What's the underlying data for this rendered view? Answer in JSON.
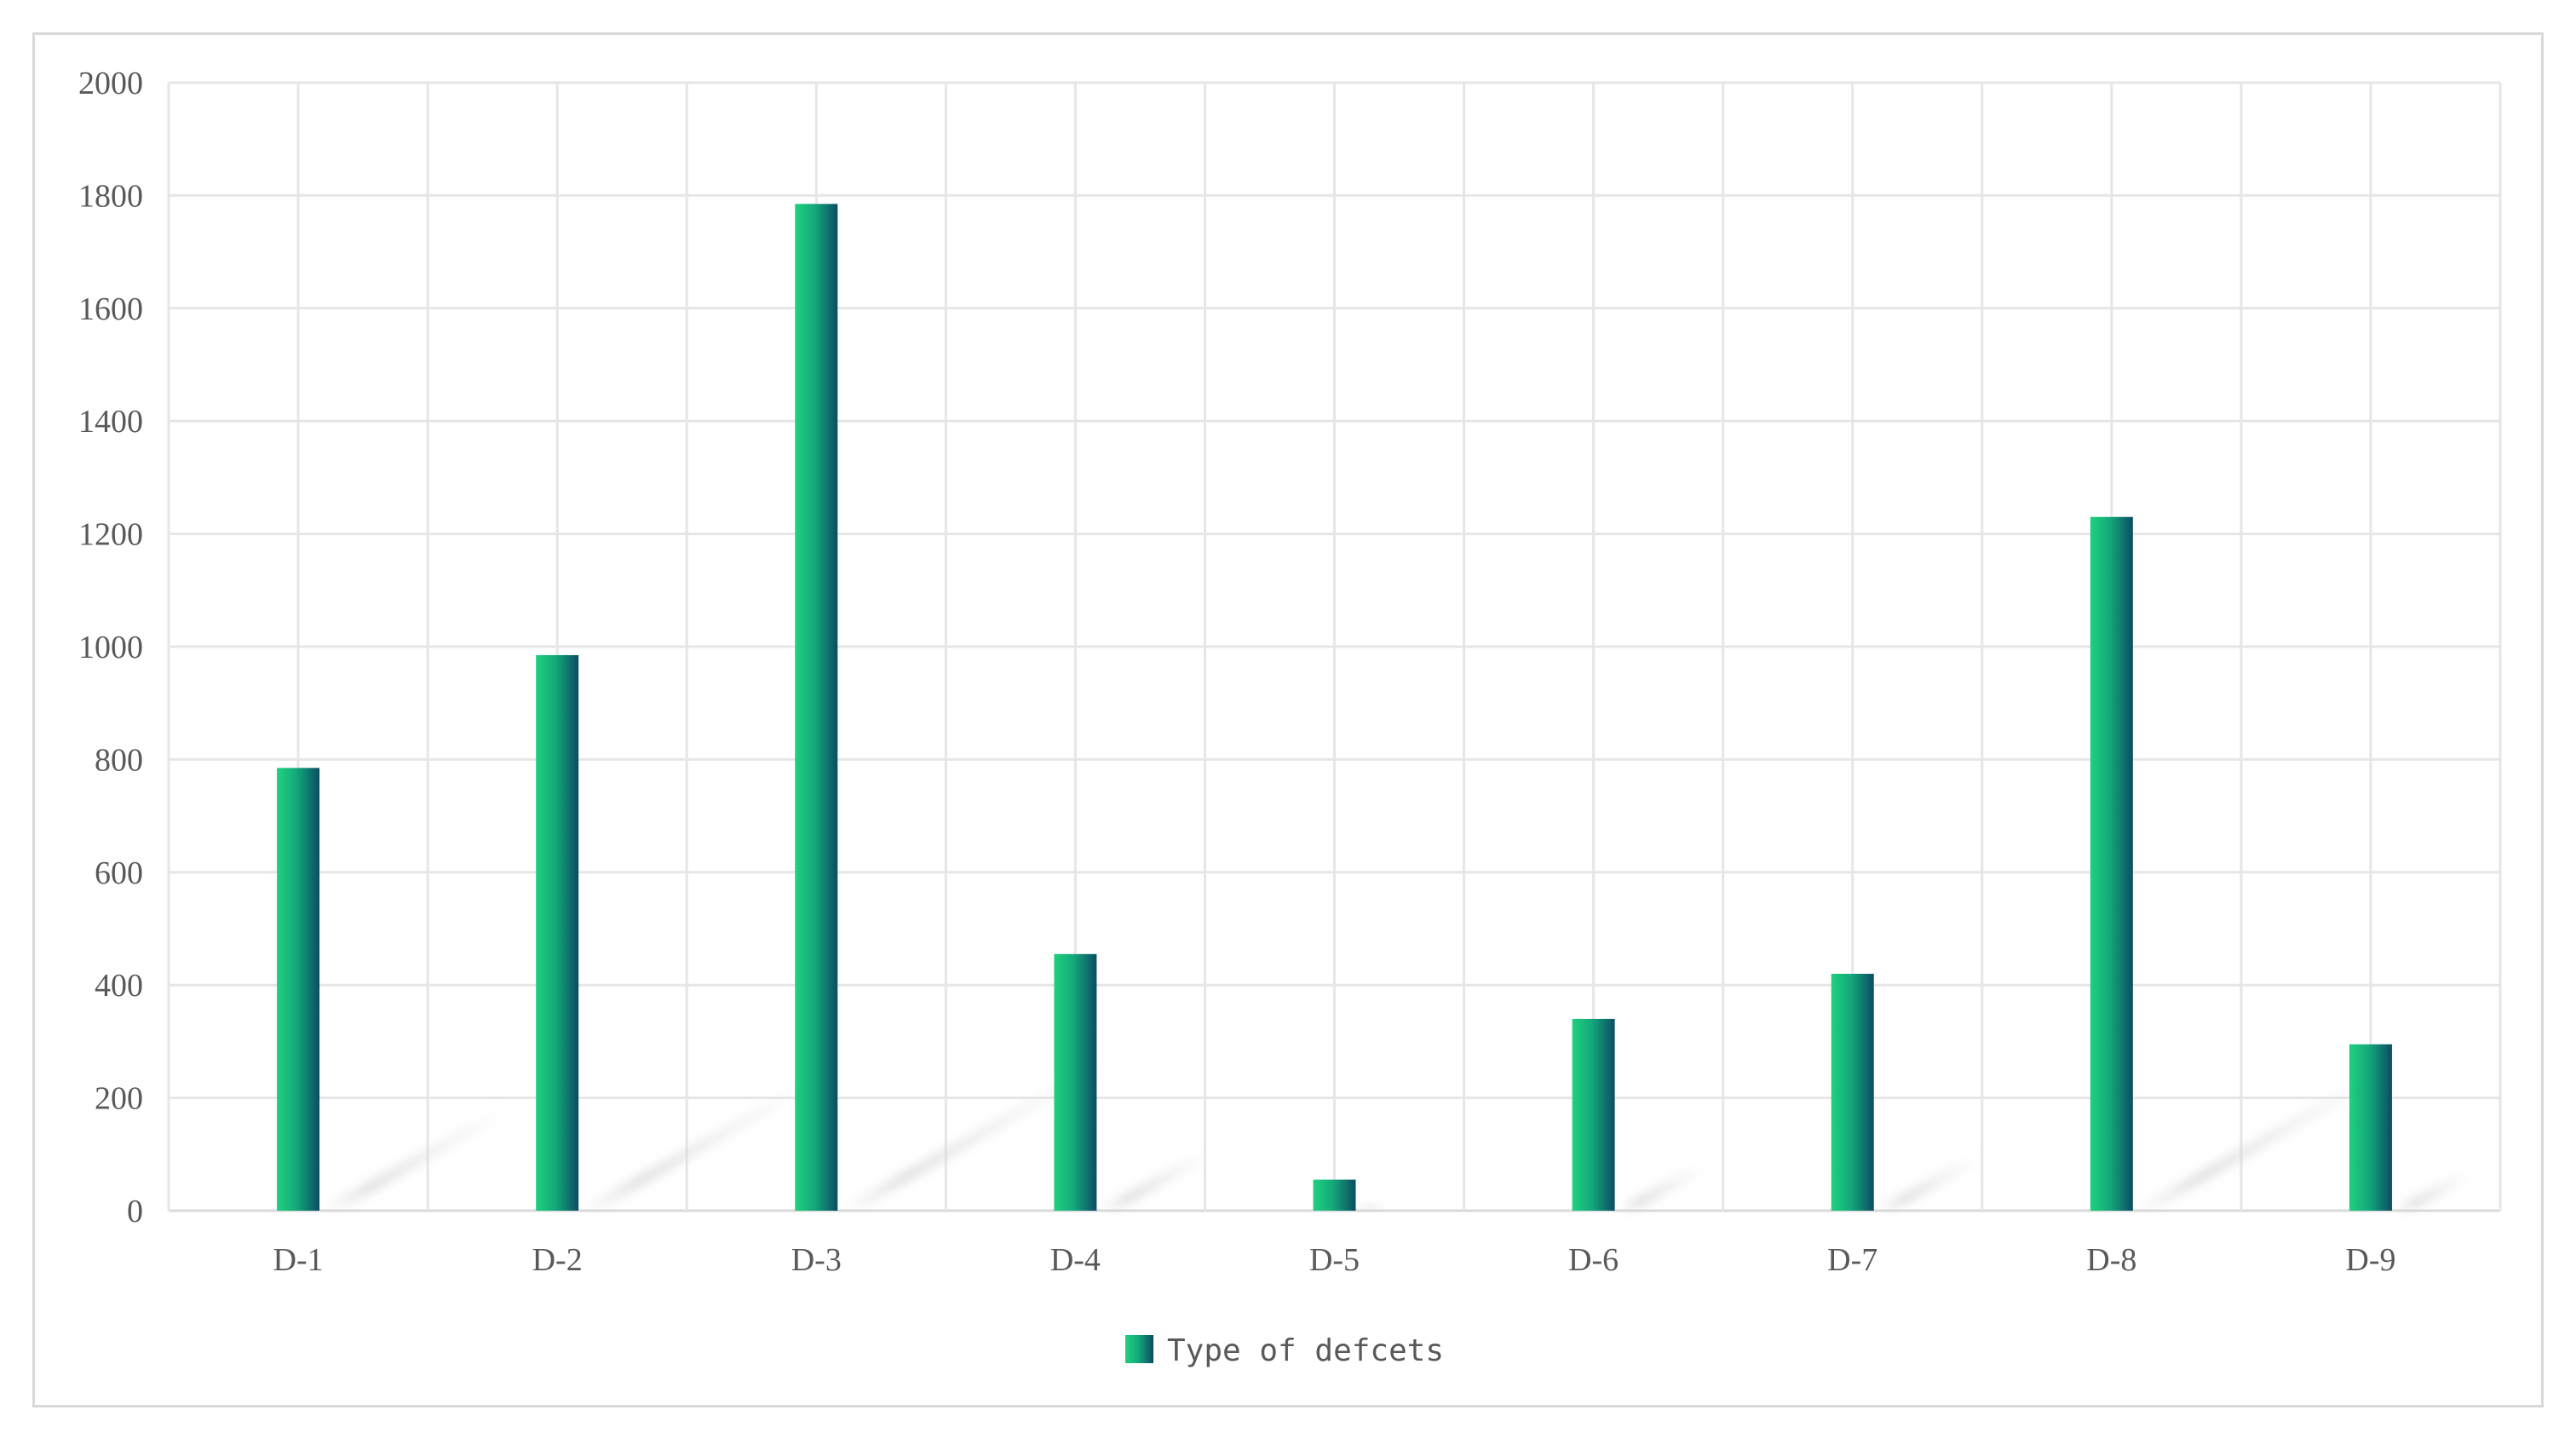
{
  "chart_data": {
    "type": "bar",
    "categories": [
      "D-1",
      "D-2",
      "D-3",
      "D-4",
      "D-5",
      "D-6",
      "D-7",
      "D-8",
      "D-9"
    ],
    "series": [
      {
        "name": "Type of defcets",
        "values": [
          785,
          985,
          1785,
          455,
          55,
          340,
          420,
          1230,
          295
        ]
      }
    ],
    "title": "",
    "xlabel": "",
    "ylabel": "",
    "ylim": [
      0,
      2000
    ],
    "yticks": [
      0,
      200,
      400,
      600,
      800,
      1000,
      1200,
      1400,
      1600,
      1800,
      2000
    ],
    "grid": true,
    "legend_position": "bottom",
    "colors": {
      "bar_light": "#1fd17f",
      "bar_dark": "#0b4d63",
      "grid": "#e6e6e6",
      "axis": "#d9d9d9"
    }
  }
}
